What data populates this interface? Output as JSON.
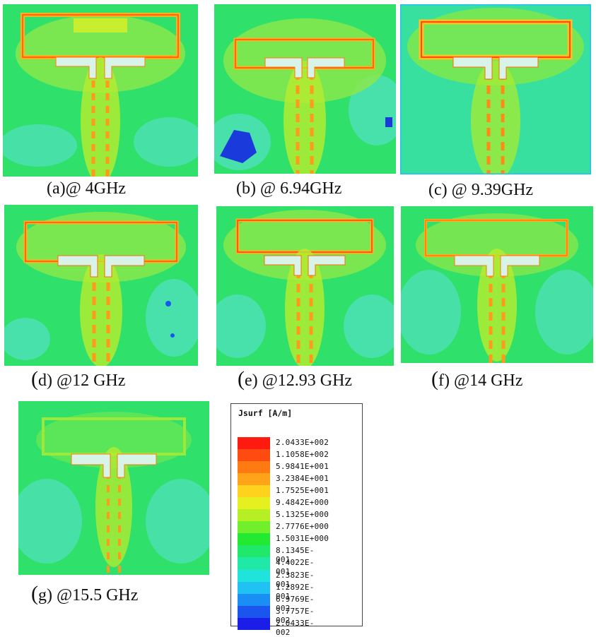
{
  "panels": [
    {
      "id": "a",
      "caption": "(a)@ 4GHz"
    },
    {
      "id": "b",
      "caption": "(b) @ 6.94GHz"
    },
    {
      "id": "c",
      "caption": "(c) @ 9.39GHz"
    },
    {
      "id": "d",
      "caption_paren": "(",
      "caption": "d) @12 GHz"
    },
    {
      "id": "e",
      "caption_paren": "(",
      "caption": "e) @12.93 GHz"
    },
    {
      "id": "f",
      "caption_paren": "(",
      "caption": "f) @14 GHz"
    },
    {
      "id": "g",
      "caption_paren": "(",
      "caption": "g) @15.5 GHz"
    }
  ],
  "legend": {
    "title": "Jsurf [A/m]",
    "entries": [
      {
        "value": "2.0433E+002",
        "color": "#ff1a10"
      },
      {
        "value": "1.1058E+002",
        "color": "#ff4a10"
      },
      {
        "value": "5.9841E+001",
        "color": "#ff7a10"
      },
      {
        "value": "3.2384E+001",
        "color": "#ffa318"
      },
      {
        "value": "1.7525E+001",
        "color": "#ffd21e"
      },
      {
        "value": "9.4842E+000",
        "color": "#e6f020"
      },
      {
        "value": "5.1325E+000",
        "color": "#b6f024"
      },
      {
        "value": "2.7776E+000",
        "color": "#70ef2a"
      },
      {
        "value": "1.5031E+000",
        "color": "#22ea30"
      },
      {
        "value": "8.1345E-001",
        "color": "#20e86a"
      },
      {
        "value": "4.4022E-001",
        "color": "#20e8a6"
      },
      {
        "value": "2.3823E-001",
        "color": "#20e4dc"
      },
      {
        "value": "1.2892E-001",
        "color": "#20c2f4"
      },
      {
        "value": "6.9769E-002",
        "color": "#1a8ef4"
      },
      {
        "value": "3.7757E-002",
        "color": "#1a56ee"
      },
      {
        "value": "2.0433E-002",
        "color": "#1a1ee6"
      }
    ]
  }
}
